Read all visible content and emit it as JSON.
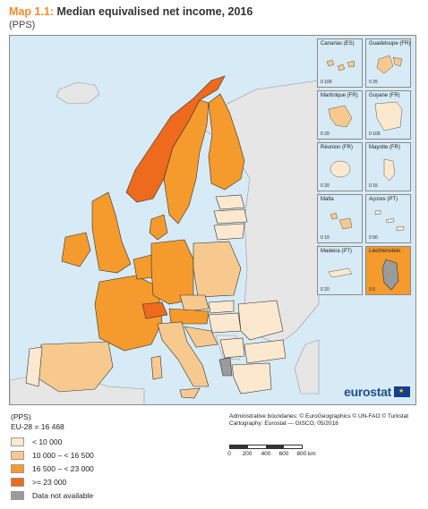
{
  "title": {
    "number": "Map 1.1:",
    "text": "Median equivalised net income, 2016"
  },
  "subtitle": "(PPS)",
  "colors": {
    "sea": "#d7ebf6",
    "non_eu": "#e6e6e6",
    "border": "#333333",
    "class1": "#fce8cf",
    "class2": "#f8c98f",
    "class3": "#f59a2d",
    "class4": "#ee6a1c",
    "na": "#9b9b9b"
  },
  "legend": {
    "unit": "(PPS)",
    "eu_value": "EU-28 = 16 468",
    "classes": [
      {
        "key": "class1",
        "label": "< 10 000"
      },
      {
        "key": "class2",
        "label": "10 000 – < 16 500"
      },
      {
        "key": "class3",
        "label": "16 500 – < 23 000"
      },
      {
        "key": "class4",
        "label": ">= 23 000"
      },
      {
        "key": "na",
        "label": "Data not available"
      }
    ]
  },
  "insets": [
    {
      "label": "Canarias (ES)",
      "scale": "100"
    },
    {
      "label": "Guadeloupe (FR)",
      "scale": "25"
    },
    {
      "label": "Martinique (FR)",
      "scale": "20"
    },
    {
      "label": "Guyane (FR)",
      "scale": "100"
    },
    {
      "label": "Réunion (FR)",
      "scale": "20"
    },
    {
      "label": "Mayotte (FR)",
      "scale": "15"
    },
    {
      "label": "Malta",
      "scale": "10"
    },
    {
      "label": "Açores (PT)",
      "scale": "50"
    },
    {
      "label": "Madeira (PT)",
      "scale": "20"
    },
    {
      "label": "Liechtenstein",
      "scale": "5"
    }
  ],
  "credits": {
    "line1": "Administrative boundaries: © EuroGeographics © UN-FAO © Turkstat",
    "line2": "Cartography: Eurostat — GISCO, 05/2018"
  },
  "scalebar": {
    "ticks": [
      "0",
      "200",
      "400",
      "600",
      "800 km"
    ]
  },
  "logo": "eurostat"
}
